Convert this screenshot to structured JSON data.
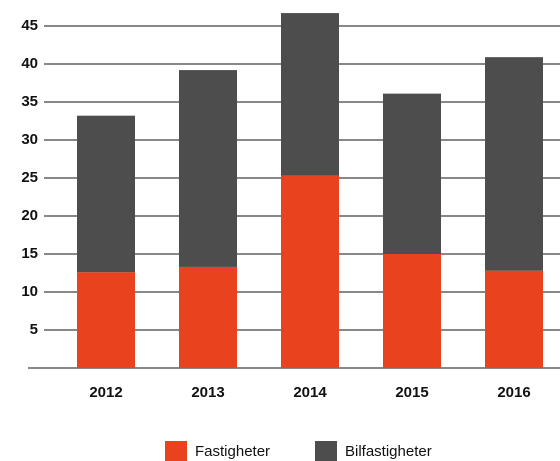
{
  "chart_data": {
    "type": "stacked_bar",
    "categories": [
      "2012",
      "2013",
      "2014",
      "2015",
      "2016"
    ],
    "series": [
      {
        "name": "Fastigheter",
        "color": "#e8431e",
        "values": [
          12.6,
          13.3,
          25.3,
          15.0,
          12.8
        ]
      },
      {
        "name": "Bilfastigheter",
        "color": "#4d4d4d",
        "values": [
          20.6,
          25.9,
          21.4,
          21.1,
          28.1
        ]
      }
    ],
    "ylim": [
      0,
      47
    ],
    "yticks": [
      5,
      10,
      15,
      20,
      25,
      30,
      35,
      40,
      45
    ],
    "grid": true,
    "legend": "bottom"
  }
}
